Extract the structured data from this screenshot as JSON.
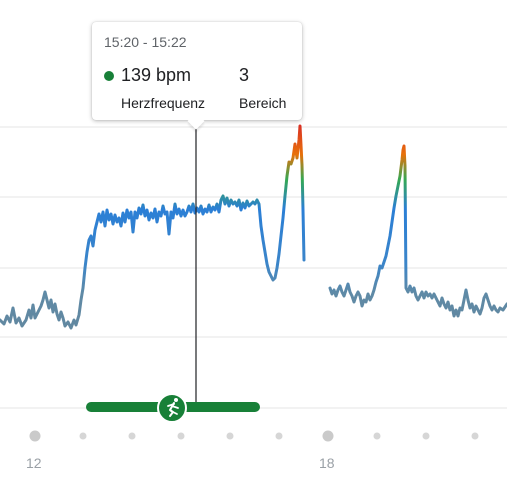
{
  "tooltip": {
    "time_range": "15:20 - 15:22",
    "heart_rate": "139 bpm",
    "heart_rate_label": "Herzfrequenz",
    "zone": "3",
    "zone_label": "Bereich",
    "dot_color": "#188038"
  },
  "chart_data": {
    "type": "line",
    "x_ticks": [
      "12",
      "18"
    ],
    "activity": {
      "icon": "running-icon",
      "color": "#188038"
    },
    "series_color_low": "#5f8aa6",
    "series_color_mid": "#2b7fd6",
    "series_color_high": "#d93025"
  }
}
